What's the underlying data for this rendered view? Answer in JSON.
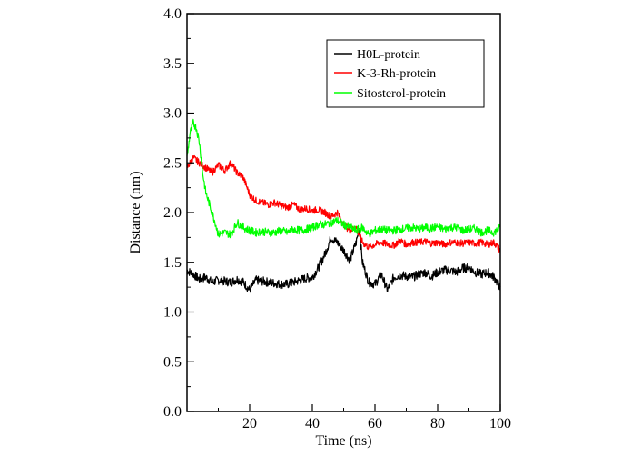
{
  "chart_data": {
    "type": "line",
    "xlabel": "Time (ns)",
    "ylabel": "Distance (nm)",
    "xlim": [
      0,
      100
    ],
    "ylim": [
      0.0,
      4.0
    ],
    "x_ticks": [
      "20",
      "40",
      "60",
      "80",
      "100"
    ],
    "y_ticks": [
      "0.0",
      "0.5",
      "1.0",
      "1.5",
      "2.0",
      "2.5",
      "3.0",
      "3.5",
      "4.0"
    ],
    "grid": false,
    "legend_position": "top-right",
    "series": [
      {
        "name": "H0L-protein",
        "color": "#000000",
        "x": [
          0,
          2,
          4,
          6,
          8,
          10,
          12,
          14,
          16,
          18,
          20,
          22,
          24,
          26,
          28,
          30,
          32,
          34,
          36,
          38,
          40,
          42,
          44,
          46,
          47,
          48,
          50,
          52,
          54,
          55,
          56,
          58,
          60,
          62,
          64,
          66,
          68,
          70,
          72,
          74,
          76,
          78,
          80,
          82,
          84,
          86,
          88,
          90,
          92,
          94,
          96,
          98,
          100
        ],
        "y": [
          1.42,
          1.38,
          1.33,
          1.35,
          1.3,
          1.32,
          1.31,
          1.3,
          1.33,
          1.3,
          1.22,
          1.32,
          1.31,
          1.3,
          1.29,
          1.28,
          1.28,
          1.3,
          1.32,
          1.34,
          1.35,
          1.45,
          1.58,
          1.75,
          1.72,
          1.7,
          1.62,
          1.52,
          1.7,
          1.85,
          1.5,
          1.3,
          1.28,
          1.38,
          1.22,
          1.35,
          1.37,
          1.36,
          1.35,
          1.38,
          1.4,
          1.36,
          1.4,
          1.42,
          1.42,
          1.4,
          1.44,
          1.45,
          1.4,
          1.38,
          1.4,
          1.35,
          1.25
        ]
      },
      {
        "name": "K-3-Rh-protein",
        "color": "#ff0000",
        "x": [
          0,
          2,
          4,
          6,
          8,
          10,
          12,
          14,
          16,
          18,
          20,
          22,
          24,
          26,
          28,
          30,
          32,
          34,
          36,
          38,
          40,
          42,
          44,
          46,
          48,
          50,
          52,
          54,
          56,
          58,
          60,
          62,
          64,
          66,
          68,
          70,
          72,
          74,
          76,
          78,
          80,
          82,
          84,
          86,
          88,
          90,
          92,
          94,
          96,
          98,
          100
        ],
        "y": [
          2.45,
          2.55,
          2.5,
          2.45,
          2.4,
          2.48,
          2.42,
          2.5,
          2.4,
          2.35,
          2.18,
          2.12,
          2.1,
          2.08,
          2.1,
          2.07,
          2.05,
          2.08,
          2.03,
          2.04,
          2.02,
          2.03,
          2.0,
          1.96,
          2.0,
          1.88,
          1.82,
          1.85,
          1.7,
          1.65,
          1.68,
          1.7,
          1.68,
          1.67,
          1.72,
          1.68,
          1.7,
          1.7,
          1.71,
          1.69,
          1.7,
          1.68,
          1.7,
          1.7,
          1.69,
          1.7,
          1.69,
          1.7,
          1.68,
          1.7,
          1.62
        ]
      },
      {
        "name": "Sitosterol-protein",
        "color": "#00ff00",
        "x": [
          0,
          1,
          2,
          3,
          4,
          5,
          6,
          7,
          8,
          9,
          10,
          12,
          14,
          16,
          18,
          20,
          22,
          24,
          26,
          28,
          30,
          32,
          34,
          36,
          38,
          40,
          42,
          44,
          46,
          48,
          50,
          52,
          54,
          56,
          58,
          60,
          62,
          64,
          66,
          68,
          70,
          72,
          74,
          76,
          78,
          80,
          82,
          84,
          86,
          88,
          90,
          92,
          94,
          96,
          98,
          100
        ],
        "y": [
          2.55,
          2.8,
          2.9,
          2.85,
          2.7,
          2.4,
          2.2,
          2.1,
          2.0,
          1.9,
          1.78,
          1.8,
          1.78,
          1.9,
          1.85,
          1.82,
          1.8,
          1.81,
          1.8,
          1.8,
          1.82,
          1.8,
          1.83,
          1.82,
          1.83,
          1.85,
          1.88,
          1.88,
          1.9,
          1.92,
          1.88,
          1.85,
          1.82,
          1.85,
          1.78,
          1.82,
          1.83,
          1.82,
          1.82,
          1.83,
          1.84,
          1.85,
          1.83,
          1.85,
          1.84,
          1.86,
          1.83,
          1.85,
          1.85,
          1.82,
          1.83,
          1.84,
          1.8,
          1.82,
          1.8,
          1.85
        ]
      }
    ]
  }
}
